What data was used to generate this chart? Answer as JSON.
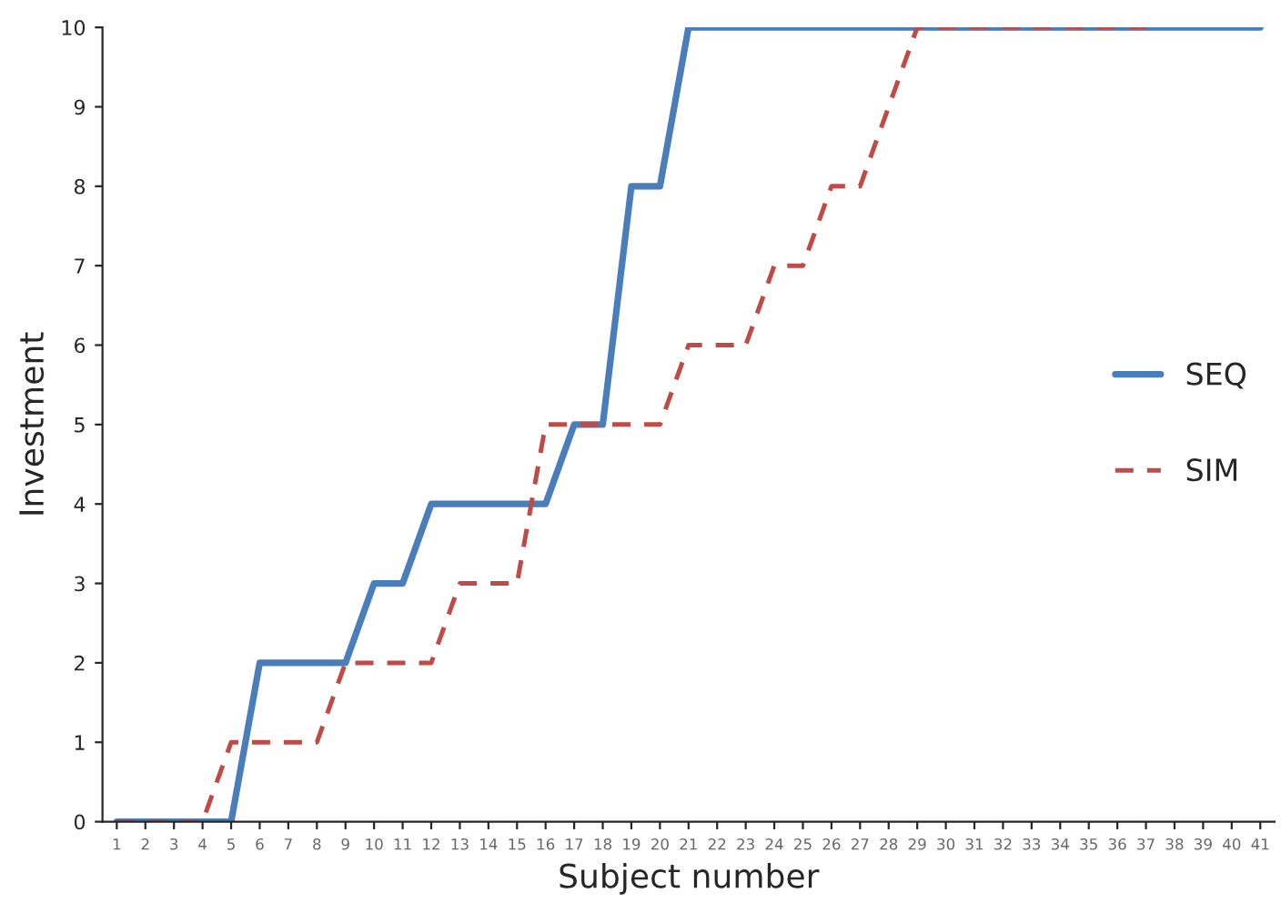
{
  "chart_data": {
    "type": "line",
    "xlabel": "Subject number",
    "ylabel": "Investment",
    "categories": [
      "1",
      "2",
      "3",
      "4",
      "5",
      "6",
      "7",
      "8",
      "9",
      "10",
      "11",
      "12",
      "13",
      "14",
      "15",
      "16",
      "17",
      "18",
      "19",
      "20",
      "21",
      "22",
      "23",
      "24",
      "25",
      "26",
      "27",
      "28",
      "29",
      "30",
      "31",
      "32",
      "33",
      "34",
      "35",
      "36",
      "37",
      "38",
      "39",
      "40",
      "41"
    ],
    "series": [
      {
        "name": "SEQ",
        "color": "#4a7ebb",
        "line_style": "solid",
        "values": [
          0,
          0,
          0,
          0,
          0,
          2,
          2,
          2,
          2,
          3,
          3,
          4,
          4,
          4,
          4,
          4,
          5,
          5,
          8,
          8,
          10,
          10,
          10,
          10,
          10,
          10,
          10,
          10,
          10,
          10,
          10,
          10,
          10,
          10,
          10,
          10,
          10,
          10,
          10,
          10,
          10
        ]
      },
      {
        "name": "SIM",
        "color": "#be4b48",
        "line_style": "dashed",
        "values": [
          0,
          0,
          0,
          0,
          1,
          1,
          1,
          1,
          2,
          2,
          2,
          2,
          3,
          3,
          3,
          5,
          5,
          5,
          5,
          5,
          6,
          6,
          6,
          7,
          7,
          8,
          8,
          9,
          10,
          10,
          10,
          10,
          10,
          10,
          10,
          10,
          10,
          null,
          null,
          null,
          null
        ]
      }
    ],
    "ylim": [
      0,
      10
    ],
    "yticks": [
      0,
      1,
      2,
      3,
      4,
      5,
      6,
      7,
      8,
      9,
      10
    ],
    "grid": false,
    "legend": "right"
  }
}
